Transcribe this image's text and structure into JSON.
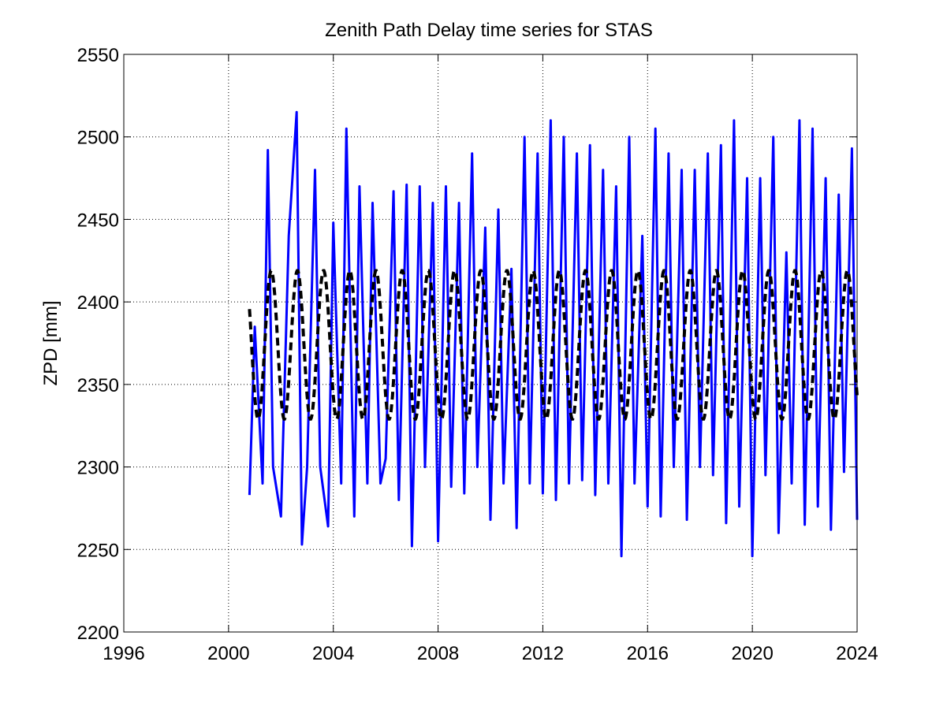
{
  "chart_data": {
    "type": "line",
    "title": "Zenith Path Delay time series for STAS",
    "xlabel": "",
    "ylabel": "ZPD [mm]",
    "xlim": [
      1996,
      2024
    ],
    "ylim": [
      2200,
      2550
    ],
    "xticks": [
      1996,
      2000,
      2004,
      2008,
      2012,
      2016,
      2020,
      2024
    ],
    "yticks": [
      2200,
      2250,
      2300,
      2350,
      2400,
      2450,
      2500,
      2550
    ],
    "grid": true,
    "series": [
      {
        "style": "solid",
        "color": "#0000ff",
        "x": [
          2000.8,
          2001.0,
          2001.3,
          2001.5,
          2001.7,
          2002.0,
          2002.3,
          2002.6,
          2002.8,
          2003.0,
          2003.3,
          2003.5,
          2003.8,
          2004.0,
          2004.3,
          2004.5,
          2004.8,
          2005.0,
          2005.3,
          2005.5,
          2005.8,
          2006.0,
          2006.3,
          2006.5,
          2006.8,
          2007.0,
          2007.3,
          2007.5,
          2007.8,
          2008.0,
          2008.3,
          2008.5,
          2008.8,
          2009.0,
          2009.3,
          2009.5,
          2009.8,
          2010.0,
          2010.3,
          2010.5,
          2010.8,
          2011.0,
          2011.3,
          2011.5,
          2011.8,
          2012.0,
          2012.3,
          2012.5,
          2012.8,
          2013.0,
          2013.3,
          2013.5,
          2013.8,
          2014.0,
          2014.3,
          2014.5,
          2014.8,
          2015.0,
          2015.3,
          2015.5,
          2015.8,
          2016.0,
          2016.3,
          2016.5,
          2016.8,
          2017.0,
          2017.3,
          2017.5,
          2017.8,
          2018.0,
          2018.3,
          2018.5,
          2018.8,
          2019.0,
          2019.3,
          2019.5,
          2019.8,
          2020.0,
          2020.3,
          2020.5,
          2020.8,
          2021.0,
          2021.3,
          2021.5,
          2021.8,
          2022.0,
          2022.3,
          2022.5,
          2022.8,
          2023.0,
          2023.3,
          2023.5,
          2023.8,
          2024.0
        ],
        "y": [
          2283,
          2385,
          2290,
          2492,
          2300,
          2270,
          2440,
          2515,
          2253,
          2300,
          2480,
          2300,
          2264,
          2448,
          2290,
          2505,
          2270,
          2470,
          2290,
          2460,
          2290,
          2305,
          2467,
          2280,
          2471,
          2252,
          2470,
          2300,
          2460,
          2255,
          2470,
          2288,
          2460,
          2284,
          2490,
          2300,
          2445,
          2268,
          2456,
          2290,
          2420,
          2263,
          2500,
          2290,
          2490,
          2284,
          2510,
          2280,
          2500,
          2290,
          2490,
          2292,
          2495,
          2283,
          2480,
          2290,
          2470,
          2246,
          2500,
          2290,
          2440,
          2276,
          2505,
          2270,
          2490,
          2300,
          2480,
          2268,
          2480,
          2300,
          2490,
          2295,
          2495,
          2266,
          2510,
          2276,
          2475,
          2246,
          2475,
          2295,
          2500,
          2260,
          2430,
          2290,
          2510,
          2265,
          2505,
          2276,
          2475,
          2262,
          2465,
          2297,
          2493,
          2268
        ]
      },
      {
        "style": "dashed",
        "color": "#000000",
        "seasonal_mean": 2374,
        "seasonal_amplitude": 45,
        "x_start": 2000.8,
        "x_end": 2024.0
      }
    ]
  }
}
